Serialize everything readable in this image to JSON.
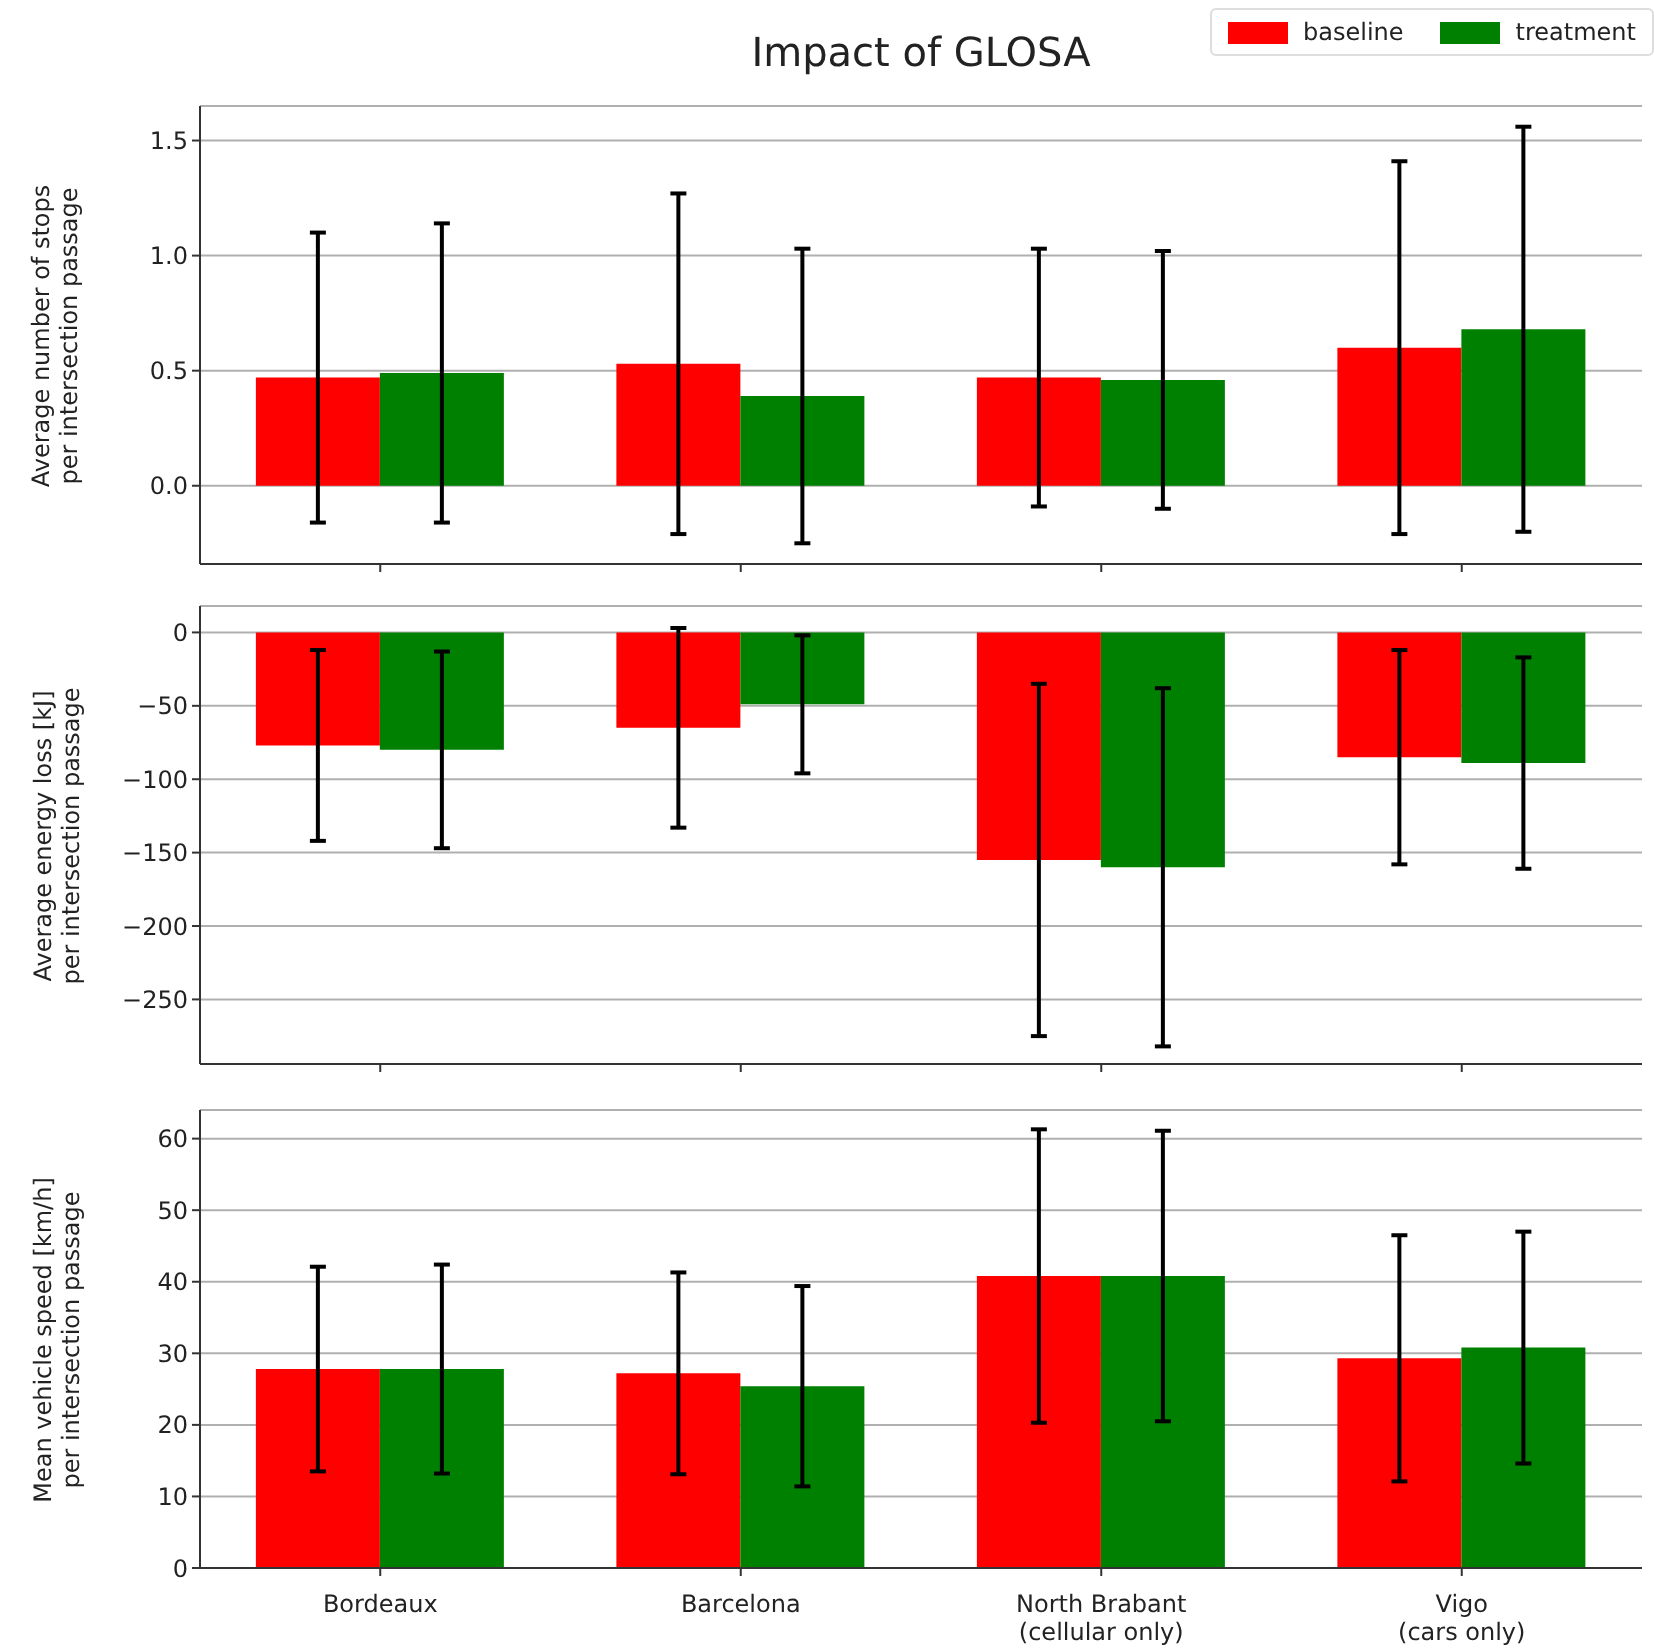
{
  "chart_data": [
    {
      "type": "bar",
      "title": "Impact of GLOSA",
      "ylabel": "Average number of stops\nper intersection passage",
      "categories": [
        null,
        null,
        null,
        null
      ],
      "series": [
        {
          "name": "baseline",
          "color": "#ff0000",
          "values": [
            0.47,
            0.53,
            0.47,
            0.6
          ],
          "errors": [
            0.63,
            0.74,
            0.56,
            0.81
          ]
        },
        {
          "name": "treatment",
          "color": "#008000",
          "values": [
            0.49,
            0.39,
            0.46,
            0.68
          ],
          "errors": [
            0.65,
            0.64,
            0.56,
            0.88
          ]
        }
      ],
      "ylim": [
        -0.34,
        1.65
      ],
      "yticks": [
        {
          "value": 0,
          "label": "0.0"
        },
        {
          "value": 0.5,
          "label": "0.5"
        },
        {
          "value": 1,
          "label": "1.0"
        },
        {
          "value": 1.5,
          "label": "1.5"
        }
      ],
      "grid": "y",
      "legend": "top right"
    },
    {
      "type": "bar",
      "ylabel": "Average energy loss [kJ]\nper intersection passage",
      "categories": [
        null,
        null,
        null,
        null
      ],
      "series": [
        {
          "color": "#ff0000",
          "values": [
            -77,
            -65,
            -155,
            -85
          ],
          "errors": [
            65,
            68,
            120,
            73
          ]
        },
        {
          "color": "#008000",
          "values": [
            -80,
            -49,
            -160,
            -89
          ],
          "errors": [
            67,
            47,
            122,
            72
          ]
        }
      ],
      "ylim": [
        -294,
        18
      ],
      "yticks": [
        {
          "value": -250,
          "label": "−250"
        },
        {
          "value": -200,
          "label": "−200"
        },
        {
          "value": -150,
          "label": "−150"
        },
        {
          "value": -100,
          "label": "−100"
        },
        {
          "value": -50,
          "label": "−50"
        },
        0
      ],
      "grid": "y"
    },
    {
      "type": "bar",
      "ylabel": "Mean vehicle speed [km/h]\nper intersection passage",
      "categories": [
        "Bordeaux",
        "Barcelona",
        "North Brabant\n(cellular only)",
        "Vigo\n(cars only)"
      ],
      "series": [
        {
          "color": "#ff0000",
          "values": [
            27.8,
            27.2,
            40.8,
            29.3
          ],
          "errors": [
            14.3,
            14.1,
            20.5,
            17.2
          ]
        },
        {
          "color": "#008000",
          "values": [
            27.8,
            25.4,
            40.8,
            30.8
          ],
          "errors": [
            14.6,
            14.0,
            20.3,
            16.2
          ]
        }
      ],
      "ylim": [
        0,
        64
      ],
      "yticks": [
        0,
        10,
        20,
        30,
        40,
        50,
        60
      ],
      "grid": "y"
    }
  ]
}
